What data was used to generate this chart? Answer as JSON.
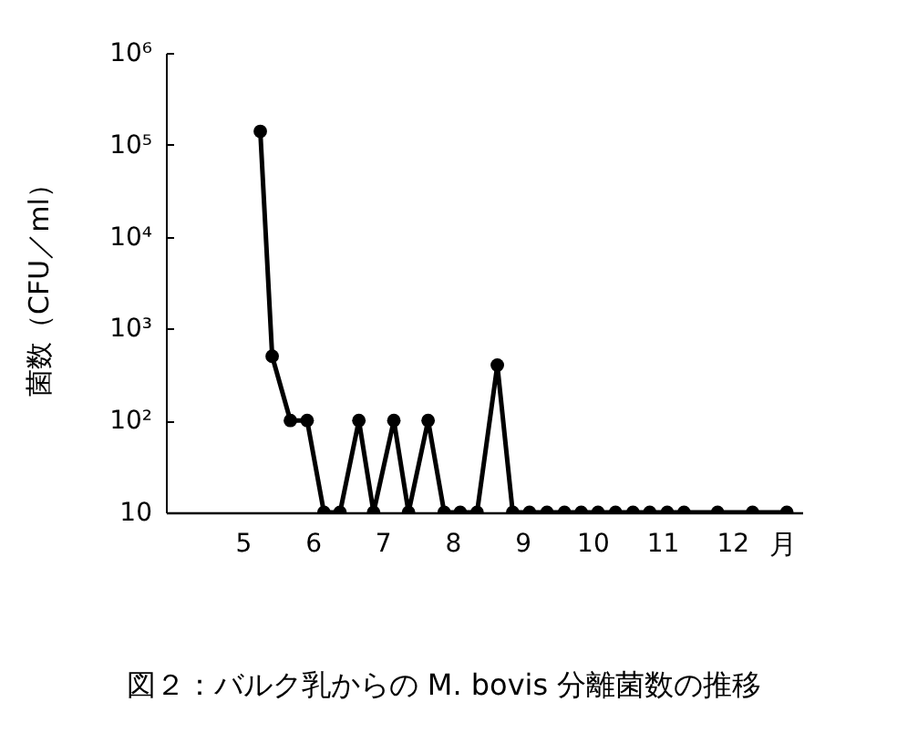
{
  "chart_data": {
    "type": "line",
    "title": "図２：バルク乳からの M. bovis 分離菌数の推移",
    "xlabel": "月",
    "ylabel": "菌数（CFU／ml）",
    "x": [
      5.25,
      5.42,
      5.68,
      5.92,
      6.16,
      6.39,
      6.66,
      6.87,
      7.16,
      7.37,
      7.65,
      7.88,
      8.11,
      8.35,
      8.64,
      8.86,
      9.1,
      9.35,
      9.6,
      9.84,
      10.08,
      10.33,
      10.58,
      10.82,
      11.07,
      11.31,
      11.79,
      12.29,
      12.78
    ],
    "series": [
      {
        "color": "#000000",
        "values": [
          140000,
          500,
          100,
          100,
          10,
          10,
          100,
          10,
          100,
          10,
          100,
          10,
          10,
          10,
          400,
          10,
          10,
          10,
          10,
          10,
          10,
          10,
          10,
          10,
          10,
          10,
          10,
          10,
          10
        ]
      }
    ],
    "log": "y",
    "xlim": [
      3.9,
      13
    ],
    "xticks": [
      5,
      6,
      7,
      8,
      9,
      10,
      11,
      12
    ],
    "ylim": [
      10,
      1000000
    ],
    "yticks": [
      10,
      {
        "value": 100,
        "label": "10²"
      },
      {
        "value": 1000,
        "label": "10³"
      },
      {
        "value": 10000,
        "label": "10⁴"
      },
      {
        "value": 100000,
        "label": "10⁵"
      },
      {
        "value": 1000000,
        "label": "10⁶"
      }
    ],
    "marker": "circle",
    "line_style": "solid",
    "grid": false
  }
}
